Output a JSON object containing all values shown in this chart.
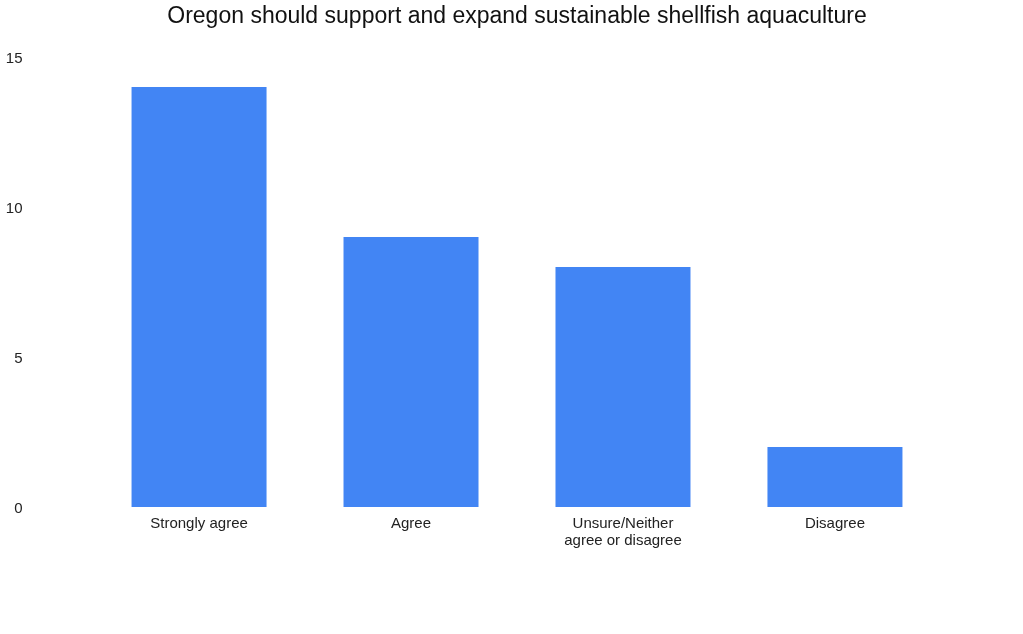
{
  "chart_data": {
    "type": "bar",
    "title": "Oregon should support and expand sustainable shellfish aquaculture",
    "categories": [
      "Strongly agree",
      "Agree",
      "Unsure/Neither\nagree or disagree",
      "Disagree"
    ],
    "values": [
      14,
      9,
      8,
      2
    ],
    "color": "#4285f4",
    "ylim": [
      0,
      15
    ],
    "yticks": [
      0,
      5,
      10,
      15
    ],
    "grid": false
  }
}
